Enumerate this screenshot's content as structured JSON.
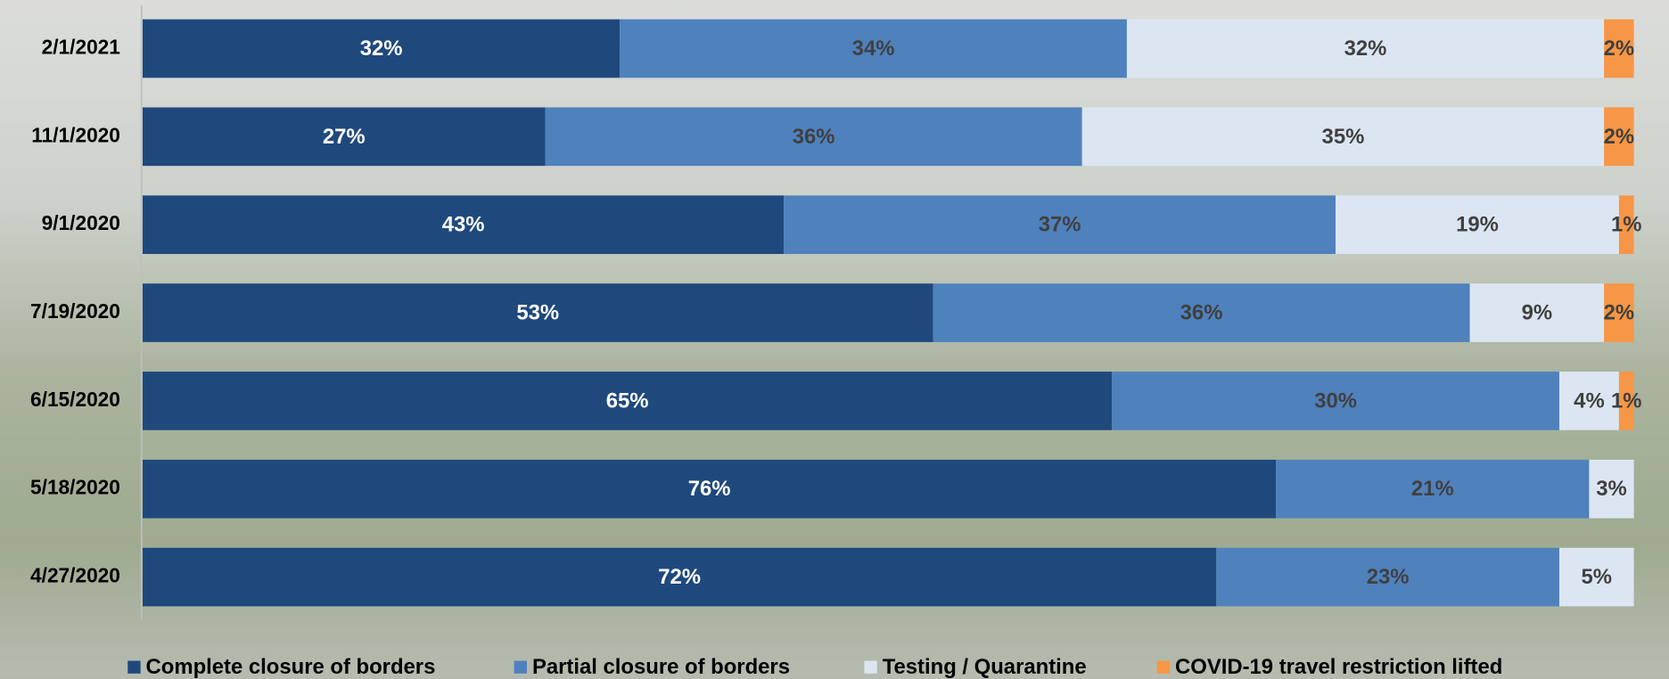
{
  "chart_data": {
    "type": "stacked_barh",
    "categories": [
      "2/1/2021",
      "11/1/2020",
      "9/1/2020",
      "7/19/2020",
      "6/15/2020",
      "5/18/2020",
      "4/27/2020"
    ],
    "xlim": [
      0,
      100
    ],
    "legend": "bottom",
    "series": [
      {
        "name": "Complete closure of borders",
        "color": "#1f497d",
        "label_color": "#ffffff",
        "values": [
          32,
          27,
          43,
          53,
          65,
          76,
          72
        ],
        "value_labels": [
          "32%",
          "27%",
          "43%",
          "53%",
          "65%",
          "76%",
          "72%"
        ]
      },
      {
        "name": "Partial closure of borders",
        "color": "#4f81bd",
        "label_color": "#404040",
        "values": [
          34,
          36,
          37,
          36,
          30,
          21,
          23
        ],
        "value_labels": [
          "34%",
          "36%",
          "37%",
          "36%",
          "30%",
          "21%",
          "23%"
        ]
      },
      {
        "name": "Testing / Quarantine",
        "color": "#dce6f2",
        "label_color": "#404040",
        "values": [
          32,
          35,
          19,
          9,
          4,
          3,
          5
        ],
        "value_labels": [
          "32%",
          "35%",
          "19%",
          "9%",
          "4%",
          "3%",
          "5%"
        ]
      },
      {
        "name": "COVID-19 travel restriction lifted",
        "color": "#f79646",
        "label_color": "#404040",
        "values": [
          2,
          2,
          1,
          2,
          1,
          null,
          null
        ],
        "value_labels": [
          "2%",
          "2%",
          "1%",
          "2%",
          "1%",
          null,
          null
        ]
      }
    ]
  }
}
